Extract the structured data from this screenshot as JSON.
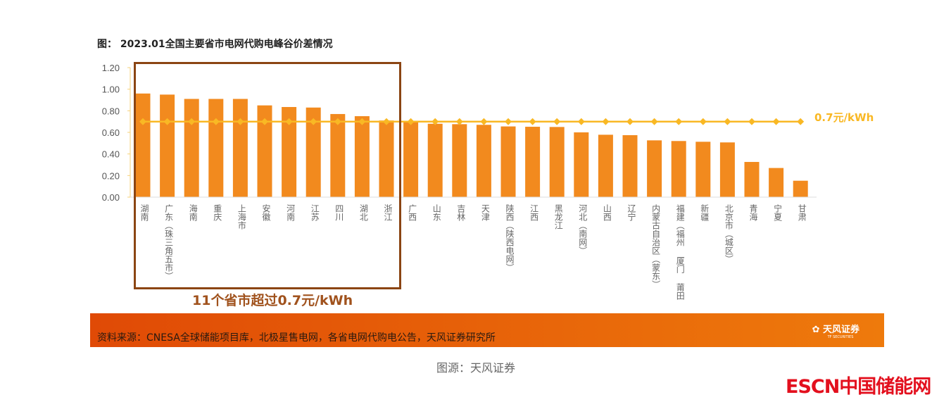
{
  "title": "图：  2023.01全国主要省市电网代购电峰谷价差情况",
  "chart_data": {
    "type": "bar",
    "title": "图：  2023.01全国主要省市电网代购电峰谷价差情况",
    "categories": [
      "湖南",
      "广东（珠三角五市）",
      "海南",
      "重庆",
      "上海市",
      "安徽",
      "河南",
      "江苏",
      "四川",
      "湖北",
      "浙江",
      "广西",
      "山东",
      "吉林",
      "天津",
      "陕西（陕西电网）",
      "江西",
      "黑龙江",
      "河北（南网）",
      "山西",
      "辽宁",
      "内蒙古自治区（蒙东）",
      "福建（福州 厦门 莆田 …",
      "新疆",
      "北京市（城区）",
      "青海",
      "宁夏",
      "甘肃"
    ],
    "values": [
      0.96,
      0.95,
      0.91,
      0.91,
      0.91,
      0.85,
      0.835,
      0.83,
      0.77,
      0.75,
      0.71,
      0.7,
      0.68,
      0.676,
      0.67,
      0.655,
      0.652,
      0.65,
      0.6,
      0.578,
      0.574,
      0.526,
      0.52,
      0.513,
      0.507,
      0.326,
      0.27,
      0.152
    ],
    "reference_line": {
      "value": 0.7,
      "label": "0.7元/kWh",
      "color": "#f9b824"
    },
    "yticks": [
      "0.00",
      "0.20",
      "0.40",
      "0.60",
      "0.80",
      "1.00",
      "1.20"
    ],
    "ylim": [
      0,
      1.2
    ],
    "grid": false,
    "bar_color": "#f28a1e",
    "highlight": {
      "count": 11,
      "text": "11个省市超过0.7元/kWh",
      "color": "#8b4513"
    }
  },
  "footer": {
    "source": "资料来源：CNESA全球储能项目库，北极星售电网，各省电网代购电公告，天风证券研究所",
    "logo": "天风证券",
    "logo_sub": "TF SECURITIES"
  },
  "caption": "图源：天风证券",
  "watermark": "ESCN中国储能网"
}
